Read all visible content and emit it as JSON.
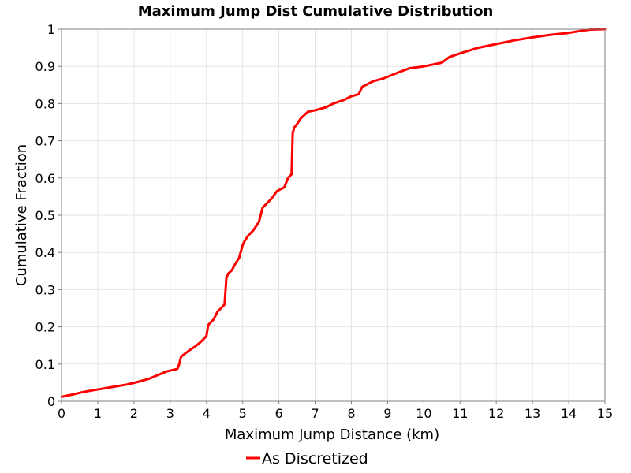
{
  "chart_data": {
    "type": "line",
    "title": "Maximum Jump Dist Cumulative Distribution",
    "xlabel": "Maximum Jump Distance (km)",
    "ylabel": "Cumulative Fraction",
    "xlim": [
      0,
      15
    ],
    "ylim": [
      0,
      1
    ],
    "xticks": [
      "0",
      "1",
      "2",
      "3",
      "4",
      "5",
      "6",
      "7",
      "8",
      "9",
      "10",
      "11",
      "12",
      "13",
      "14",
      "15"
    ],
    "yticks": [
      "0",
      "0.1",
      "0.2",
      "0.3",
      "0.4",
      "0.5",
      "0.6",
      "0.7",
      "0.8",
      "0.9",
      "1"
    ],
    "grid": true,
    "legend_position": "bottom-center",
    "series": [
      {
        "name": "As Discretized",
        "color": "#ff0000",
        "x": [
          0,
          0.3,
          0.6,
          0.9,
          1.2,
          1.5,
          1.8,
          2.1,
          2.4,
          2.6,
          2.9,
          3.2,
          3.25,
          3.3,
          3.5,
          3.7,
          3.85,
          4.0,
          4.05,
          4.2,
          4.3,
          4.4,
          4.5,
          4.55,
          4.6,
          4.7,
          4.8,
          4.9,
          5.0,
          5.05,
          5.15,
          5.3,
          5.45,
          5.55,
          5.65,
          5.8,
          5.95,
          6.15,
          6.25,
          6.35,
          6.38,
          6.42,
          6.5,
          6.6,
          6.8,
          7.0,
          7.3,
          7.5,
          7.8,
          8.0,
          8.2,
          8.3,
          8.6,
          8.9,
          9.2,
          9.6,
          10.0,
          10.5,
          10.7,
          11.0,
          11.5,
          12.0,
          12.5,
          13.0,
          13.5,
          14.0,
          14.3,
          14.6,
          15.0
        ],
        "y": [
          0.012,
          0.018,
          0.025,
          0.03,
          0.035,
          0.04,
          0.045,
          0.052,
          0.06,
          0.068,
          0.08,
          0.087,
          0.1,
          0.12,
          0.135,
          0.148,
          0.16,
          0.175,
          0.205,
          0.22,
          0.24,
          0.25,
          0.26,
          0.33,
          0.343,
          0.352,
          0.37,
          0.385,
          0.42,
          0.43,
          0.445,
          0.46,
          0.482,
          0.52,
          0.53,
          0.545,
          0.565,
          0.575,
          0.6,
          0.61,
          0.72,
          0.735,
          0.745,
          0.76,
          0.778,
          0.782,
          0.79,
          0.8,
          0.81,
          0.82,
          0.825,
          0.845,
          0.86,
          0.868,
          0.88,
          0.895,
          0.9,
          0.91,
          0.925,
          0.935,
          0.95,
          0.96,
          0.97,
          0.978,
          0.985,
          0.99,
          0.995,
          0.999,
          1.0
        ]
      }
    ]
  }
}
